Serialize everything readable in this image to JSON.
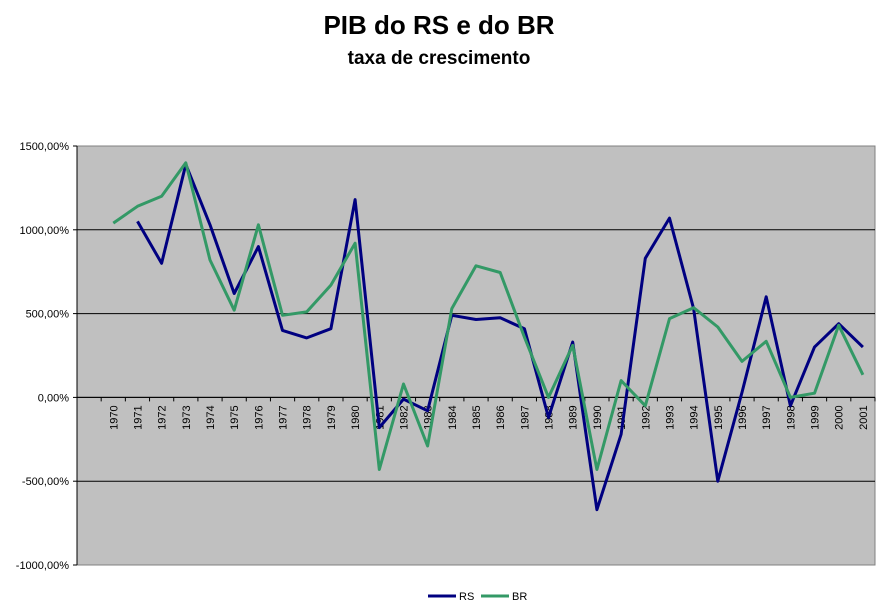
{
  "chart_data": {
    "type": "line",
    "title": "PIB do RS e do BR",
    "subtitle": "taxa de crescimento",
    "xlabel": "",
    "ylabel": "",
    "categories": [
      "1970",
      "1971",
      "1972",
      "1973",
      "1974",
      "1975",
      "1976",
      "1977",
      "1978",
      "1979",
      "1980",
      "1981",
      "1982",
      "1983",
      "1984",
      "1985",
      "1986",
      "1987",
      "1988",
      "1989",
      "1990",
      "1991",
      "1992",
      "1993",
      "1994",
      "1995",
      "1996",
      "1997",
      "1998",
      "1999",
      "2000",
      "2001"
    ],
    "ylim": [
      -1000,
      1500
    ],
    "yticks": [
      -1000,
      -500,
      0,
      500,
      1000,
      1500
    ],
    "ytick_labels": [
      "-1000,00%",
      "-500,00%",
      "0,00%",
      "500,00%",
      "1000,00%",
      "1500,00%"
    ],
    "grid": true,
    "legend": "bottom",
    "series": [
      {
        "name": "RS",
        "color": "#000080",
        "values": [
          null,
          1050,
          800,
          1390,
          1030,
          620,
          900,
          400,
          355,
          410,
          1180,
          -180,
          -10,
          -80,
          490,
          465,
          475,
          410,
          -120,
          330,
          -670,
          -220,
          830,
          1070,
          530,
          -500,
          30,
          600,
          -50,
          300,
          440,
          300
        ]
      },
      {
        "name": "BR",
        "color": "#339966",
        "values": [
          1040,
          1140,
          1200,
          1400,
          820,
          520,
          1030,
          490,
          510,
          670,
          920,
          -430,
          80,
          -290,
          530,
          785,
          745,
          360,
          0,
          310,
          -430,
          100,
          -50,
          470,
          535,
          420,
          215,
          335,
          0,
          25,
          430,
          135
        ]
      }
    ]
  }
}
